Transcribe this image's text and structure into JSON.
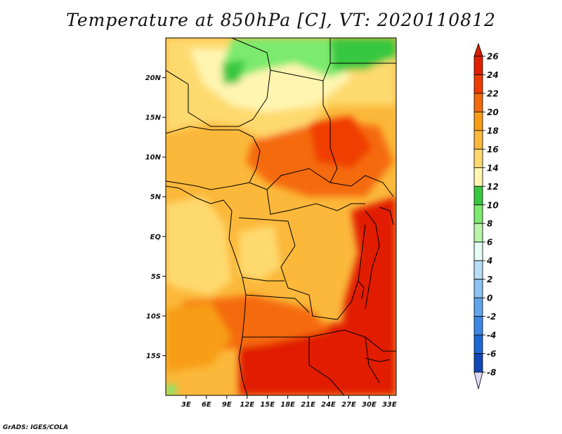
{
  "title": "Temperature at 850hPa [C], VT: 2020110812",
  "credit": "GrADS: IGES/COLA",
  "map": {
    "lon_range": [
      0,
      34
    ],
    "lat_range": [
      -20,
      25
    ],
    "lat_ticks": [
      {
        "value": 20,
        "label": "20N"
      },
      {
        "value": 15,
        "label": "15N"
      },
      {
        "value": 10,
        "label": "10N"
      },
      {
        "value": 5,
        "label": "5N"
      },
      {
        "value": 0,
        "label": "EQ"
      },
      {
        "value": -5,
        "label": "5S"
      },
      {
        "value": -10,
        "label": "10S"
      },
      {
        "value": -15,
        "label": "15S"
      }
    ],
    "lon_ticks": [
      {
        "value": 3,
        "label": "3E"
      },
      {
        "value": 6,
        "label": "6E"
      },
      {
        "value": 9,
        "label": "9E"
      },
      {
        "value": 12,
        "label": "12E"
      },
      {
        "value": 15,
        "label": "15E"
      },
      {
        "value": 18,
        "label": "18E"
      },
      {
        "value": 21,
        "label": "21E"
      },
      {
        "value": 24,
        "label": "24E"
      },
      {
        "value": 27,
        "label": "27E"
      },
      {
        "value": 30,
        "label": "30E"
      },
      {
        "value": 33,
        "label": "33E"
      }
    ]
  },
  "colorbar": {
    "levels": [
      {
        "label": "26",
        "color": "#e11f00"
      },
      {
        "label": "24",
        "color": "#f03c00"
      },
      {
        "label": "22",
        "color": "#f56a0a"
      },
      {
        "label": "20",
        "color": "#f89d14"
      },
      {
        "label": "18",
        "color": "#fbb83a"
      },
      {
        "label": "16",
        "color": "#fed96e"
      },
      {
        "label": "14",
        "color": "#fff5b0"
      },
      {
        "label": "12",
        "color": "#37c841"
      },
      {
        "label": "10",
        "color": "#7cea6e"
      },
      {
        "label": "8",
        "color": "#b8f5a8"
      },
      {
        "label": "6",
        "color": "#e4fcf4"
      },
      {
        "label": "4",
        "color": "#b8def7"
      },
      {
        "label": "2",
        "color": "#8ac3f2"
      },
      {
        "label": "0",
        "color": "#5fa6ec"
      },
      {
        "label": "-2",
        "color": "#3b88e4"
      },
      {
        "label": "-4",
        "color": "#1d69d4"
      },
      {
        "label": "-6",
        "color": "#0f48b8"
      },
      {
        "label": "-8",
        "color": "#0a2a8a"
      }
    ],
    "top_color": "#d61f00",
    "bottom_color": "#dcdcf8",
    "below_bottom_color": "#06145a"
  }
}
